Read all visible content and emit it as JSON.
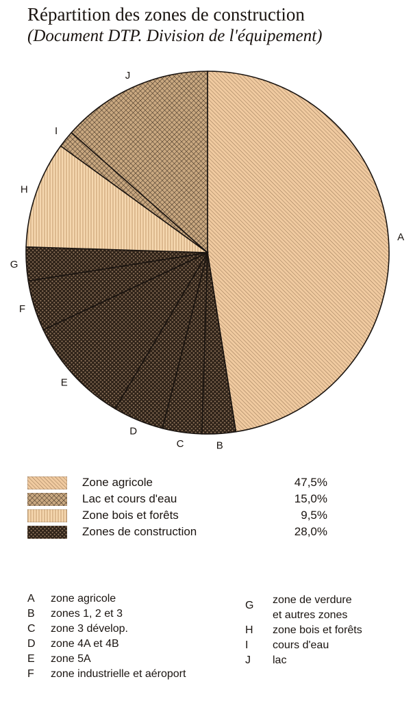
{
  "title": "Répartition des zones de construction",
  "subtitle": "(Document DTP. Division de l'équipement)",
  "colors": {
    "agricole": "#f0caa0",
    "lac": "#c9a880",
    "bois": "#f6d8b0",
    "construction": "#5a4636",
    "ink": "#2a2018"
  },
  "chart_data": {
    "type": "pie",
    "title": "Répartition des zones de construction",
    "subtitle": "(Document DTP. Division de l'équipement)",
    "slices": [
      {
        "letter": "A",
        "label": "zone agricole",
        "value": 47.5,
        "group": "Zone agricole"
      },
      {
        "letter": "B",
        "label": "zones 1, 2 et 3",
        "value": 3.0,
        "group": "Zones de construction"
      },
      {
        "letter": "C",
        "label": "zone 3 dévelop.",
        "value": 3.5,
        "group": "Zones de construction"
      },
      {
        "letter": "D",
        "label": "zone 4A et 4B",
        "value": 4.5,
        "group": "Zones de construction"
      },
      {
        "letter": "E",
        "label": "zone 5A",
        "value": 9.5,
        "group": "Zones de construction"
      },
      {
        "letter": "F",
        "label": "zone industrielle et aéroport",
        "value": 4.5,
        "group": "Zones de construction"
      },
      {
        "letter": "G",
        "label": "zone de verdure et autres zones",
        "value": 3.0,
        "group": "Zones de construction"
      },
      {
        "letter": "H",
        "label": "zone bois et forêts",
        "value": 9.5,
        "group": "Zone bois et forêts"
      },
      {
        "letter": "I",
        "label": "cours d'eau",
        "value": 1.5,
        "group": "Lac et cours d'eau"
      },
      {
        "letter": "J",
        "label": "lac",
        "value": 13.5,
        "group": "Lac et cours d'eau"
      }
    ],
    "legend": [
      {
        "label": "Zone agricole",
        "value": "47,5%",
        "pattern": "agricole"
      },
      {
        "label": "Lac et cours d'eau",
        "value": "15,0%",
        "pattern": "lac"
      },
      {
        "label": "Zone bois et forêts",
        "value": "9,5%",
        "pattern": "bois"
      },
      {
        "label": "Zones de construction",
        "value": "28,0%",
        "pattern": "construction"
      }
    ]
  },
  "key": {
    "left": [
      {
        "letter": "A",
        "text": "zone agricole"
      },
      {
        "letter": "B",
        "text": "zones 1, 2 et 3"
      },
      {
        "letter": "C",
        "text": "zone 3 dévelop."
      },
      {
        "letter": "D",
        "text": "zone 4A et 4B"
      },
      {
        "letter": "E",
        "text": "zone 5A"
      },
      {
        "letter": "F",
        "text": "zone industrielle et aéroport"
      }
    ],
    "right": [
      {
        "letter": "G",
        "text": "zone de verdure",
        "text2": "et autres zones"
      },
      {
        "letter": "H",
        "text": "zone bois et forêts"
      },
      {
        "letter": "I",
        "text": "cours d'eau"
      },
      {
        "letter": "J",
        "text": "lac"
      }
    ]
  }
}
